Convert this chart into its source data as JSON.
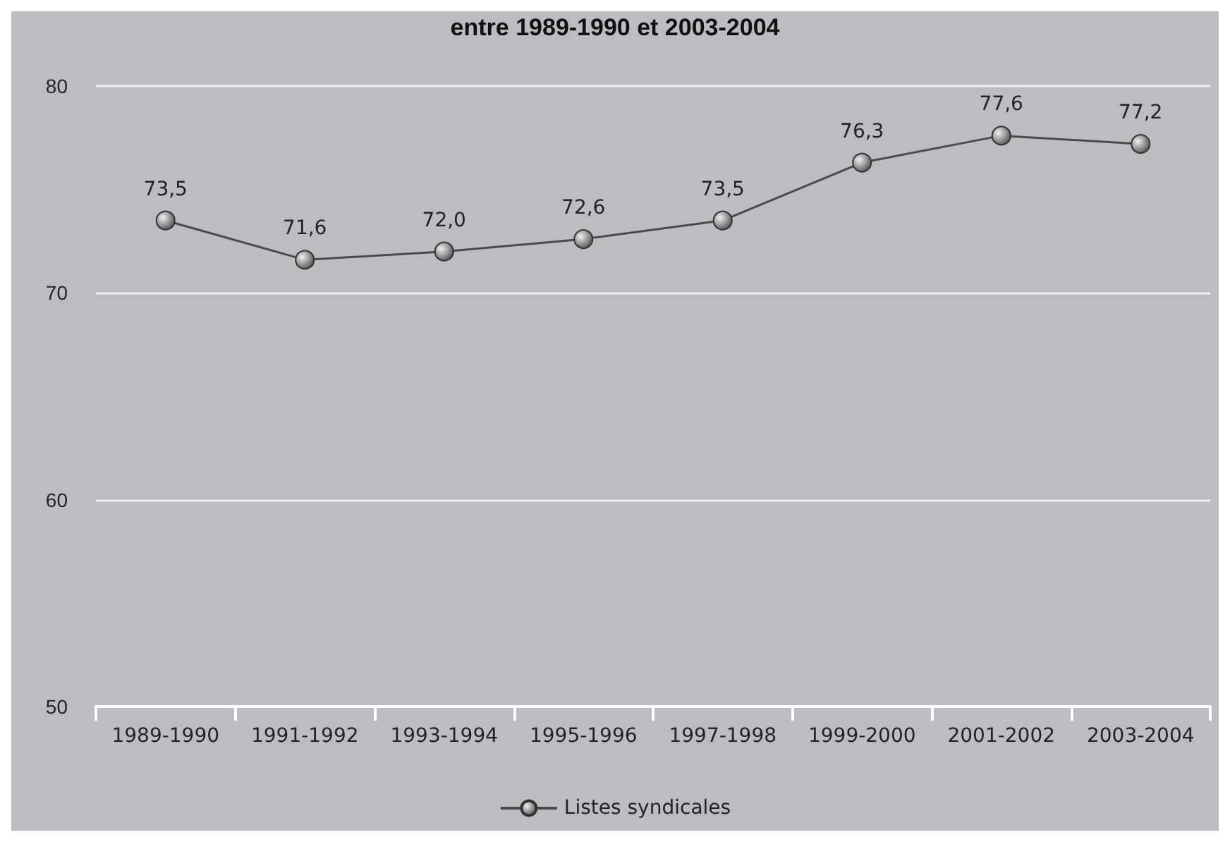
{
  "chart_data": {
    "type": "line",
    "title": "entre 1989-1990 et 2003-2004",
    "categories": [
      "1989-1990",
      "1991-1992",
      "1993-1994",
      "1995-1996",
      "1997-1998",
      "1999-2000",
      "2001-2002",
      "2003-2004"
    ],
    "series": [
      {
        "name": "Listes syndicales",
        "color": "#4a4a4a",
        "values": [
          73.5,
          71.6,
          72.0,
          72.6,
          73.5,
          76.3,
          77.6,
          77.2
        ],
        "value_labels": [
          "73,5",
          "71,6",
          "72,0",
          "72,6",
          "73,5",
          "76,3",
          "77,6",
          "77,2"
        ]
      }
    ],
    "ylim": [
      50,
      80
    ],
    "yticks": [
      50,
      60,
      70,
      80
    ],
    "grid": "y",
    "legend": "bottom",
    "marker": "circle",
    "line_style": "solid"
  }
}
